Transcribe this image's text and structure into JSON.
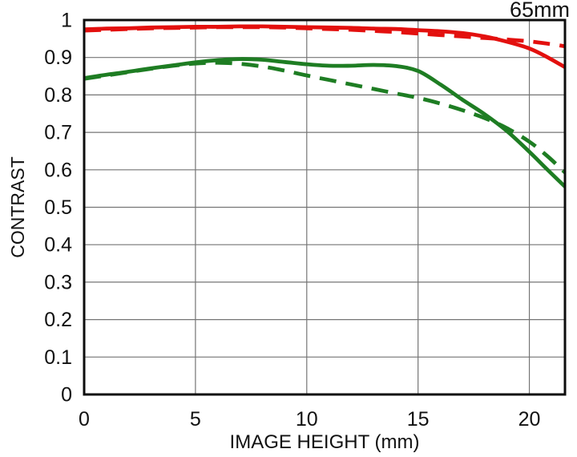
{
  "header": {
    "focal_length_label": "65mm"
  },
  "chart_data": {
    "type": "line",
    "title": "65mm",
    "xlabel": "IMAGE HEIGHT (mm)",
    "ylabel": "CONTRAST",
    "xlim": [
      0,
      21.6
    ],
    "ylim": [
      0,
      1
    ],
    "grid": true,
    "legend_position": "none",
    "colors": {
      "red": "#e3100e",
      "green": "#1e7d23",
      "grid": "#757575",
      "frame": "#0d0d0d"
    },
    "x_ticks": [
      {
        "v": 0,
        "label": "0"
      },
      {
        "v": 5,
        "label": "5"
      },
      {
        "v": 10,
        "label": "10"
      },
      {
        "v": 15,
        "label": "15"
      },
      {
        "v": 20,
        "label": "20"
      }
    ],
    "y_ticks": [
      {
        "v": 0,
        "label": "0"
      },
      {
        "v": 0.1,
        "label": "0.1"
      },
      {
        "v": 0.2,
        "label": "0.2"
      },
      {
        "v": 0.3,
        "label": "0.3"
      },
      {
        "v": 0.4,
        "label": "0.4"
      },
      {
        "v": 0.5,
        "label": "0.5"
      },
      {
        "v": 0.6,
        "label": "0.6"
      },
      {
        "v": 0.7,
        "label": "0.7"
      },
      {
        "v": 0.8,
        "label": "0.8"
      },
      {
        "v": 0.9,
        "label": "0.9"
      },
      {
        "v": 1,
        "label": "1"
      }
    ],
    "series": [
      {
        "name": "red-solid",
        "color": "#e3100e",
        "dash": "solid",
        "x": [
          0,
          1,
          2,
          3,
          4,
          5,
          6,
          7,
          8,
          9,
          10,
          11,
          12,
          13,
          14,
          15,
          16,
          17,
          18,
          19,
          20,
          20.8,
          21.6
        ],
        "y": [
          0.975,
          0.977,
          0.978,
          0.98,
          0.981,
          0.982,
          0.982,
          0.983,
          0.983,
          0.982,
          0.981,
          0.98,
          0.979,
          0.977,
          0.976,
          0.973,
          0.97,
          0.965,
          0.956,
          0.942,
          0.924,
          0.901,
          0.874
        ]
      },
      {
        "name": "red-dashed",
        "color": "#e3100e",
        "dash": "dashed",
        "x": [
          0,
          1,
          2,
          3,
          4,
          5,
          6,
          7,
          8,
          9,
          10,
          11,
          12,
          13,
          14,
          15,
          16,
          17,
          18,
          19,
          20,
          20.8,
          21.6
        ],
        "y": [
          0.972,
          0.974,
          0.976,
          0.978,
          0.979,
          0.98,
          0.981,
          0.981,
          0.981,
          0.98,
          0.978,
          0.976,
          0.974,
          0.971,
          0.968,
          0.964,
          0.96,
          0.956,
          0.952,
          0.948,
          0.943,
          0.937,
          0.93
        ]
      },
      {
        "name": "green-solid",
        "color": "#1e7d23",
        "dash": "solid",
        "x": [
          0,
          1,
          2,
          3,
          4,
          5,
          6,
          7,
          8,
          9,
          10,
          11,
          12,
          13,
          14,
          15,
          16,
          17,
          18,
          19,
          20,
          20.8,
          21.6
        ],
        "y": [
          0.845,
          0.854,
          0.862,
          0.871,
          0.879,
          0.887,
          0.893,
          0.896,
          0.894,
          0.888,
          0.882,
          0.878,
          0.878,
          0.88,
          0.877,
          0.864,
          0.828,
          0.787,
          0.748,
          0.703,
          0.648,
          0.601,
          0.555
        ]
      },
      {
        "name": "green-dashed",
        "color": "#1e7d23",
        "dash": "dashed",
        "x": [
          0,
          1,
          2,
          3,
          4,
          5,
          6,
          7,
          8,
          9,
          10,
          11,
          12,
          13,
          14,
          15,
          16,
          17,
          18,
          19,
          20,
          20.8,
          21.6
        ],
        "y": [
          0.843,
          0.852,
          0.861,
          0.87,
          0.878,
          0.884,
          0.886,
          0.883,
          0.876,
          0.865,
          0.852,
          0.84,
          0.828,
          0.816,
          0.804,
          0.792,
          0.777,
          0.759,
          0.738,
          0.711,
          0.675,
          0.637,
          0.593
        ]
      }
    ]
  }
}
